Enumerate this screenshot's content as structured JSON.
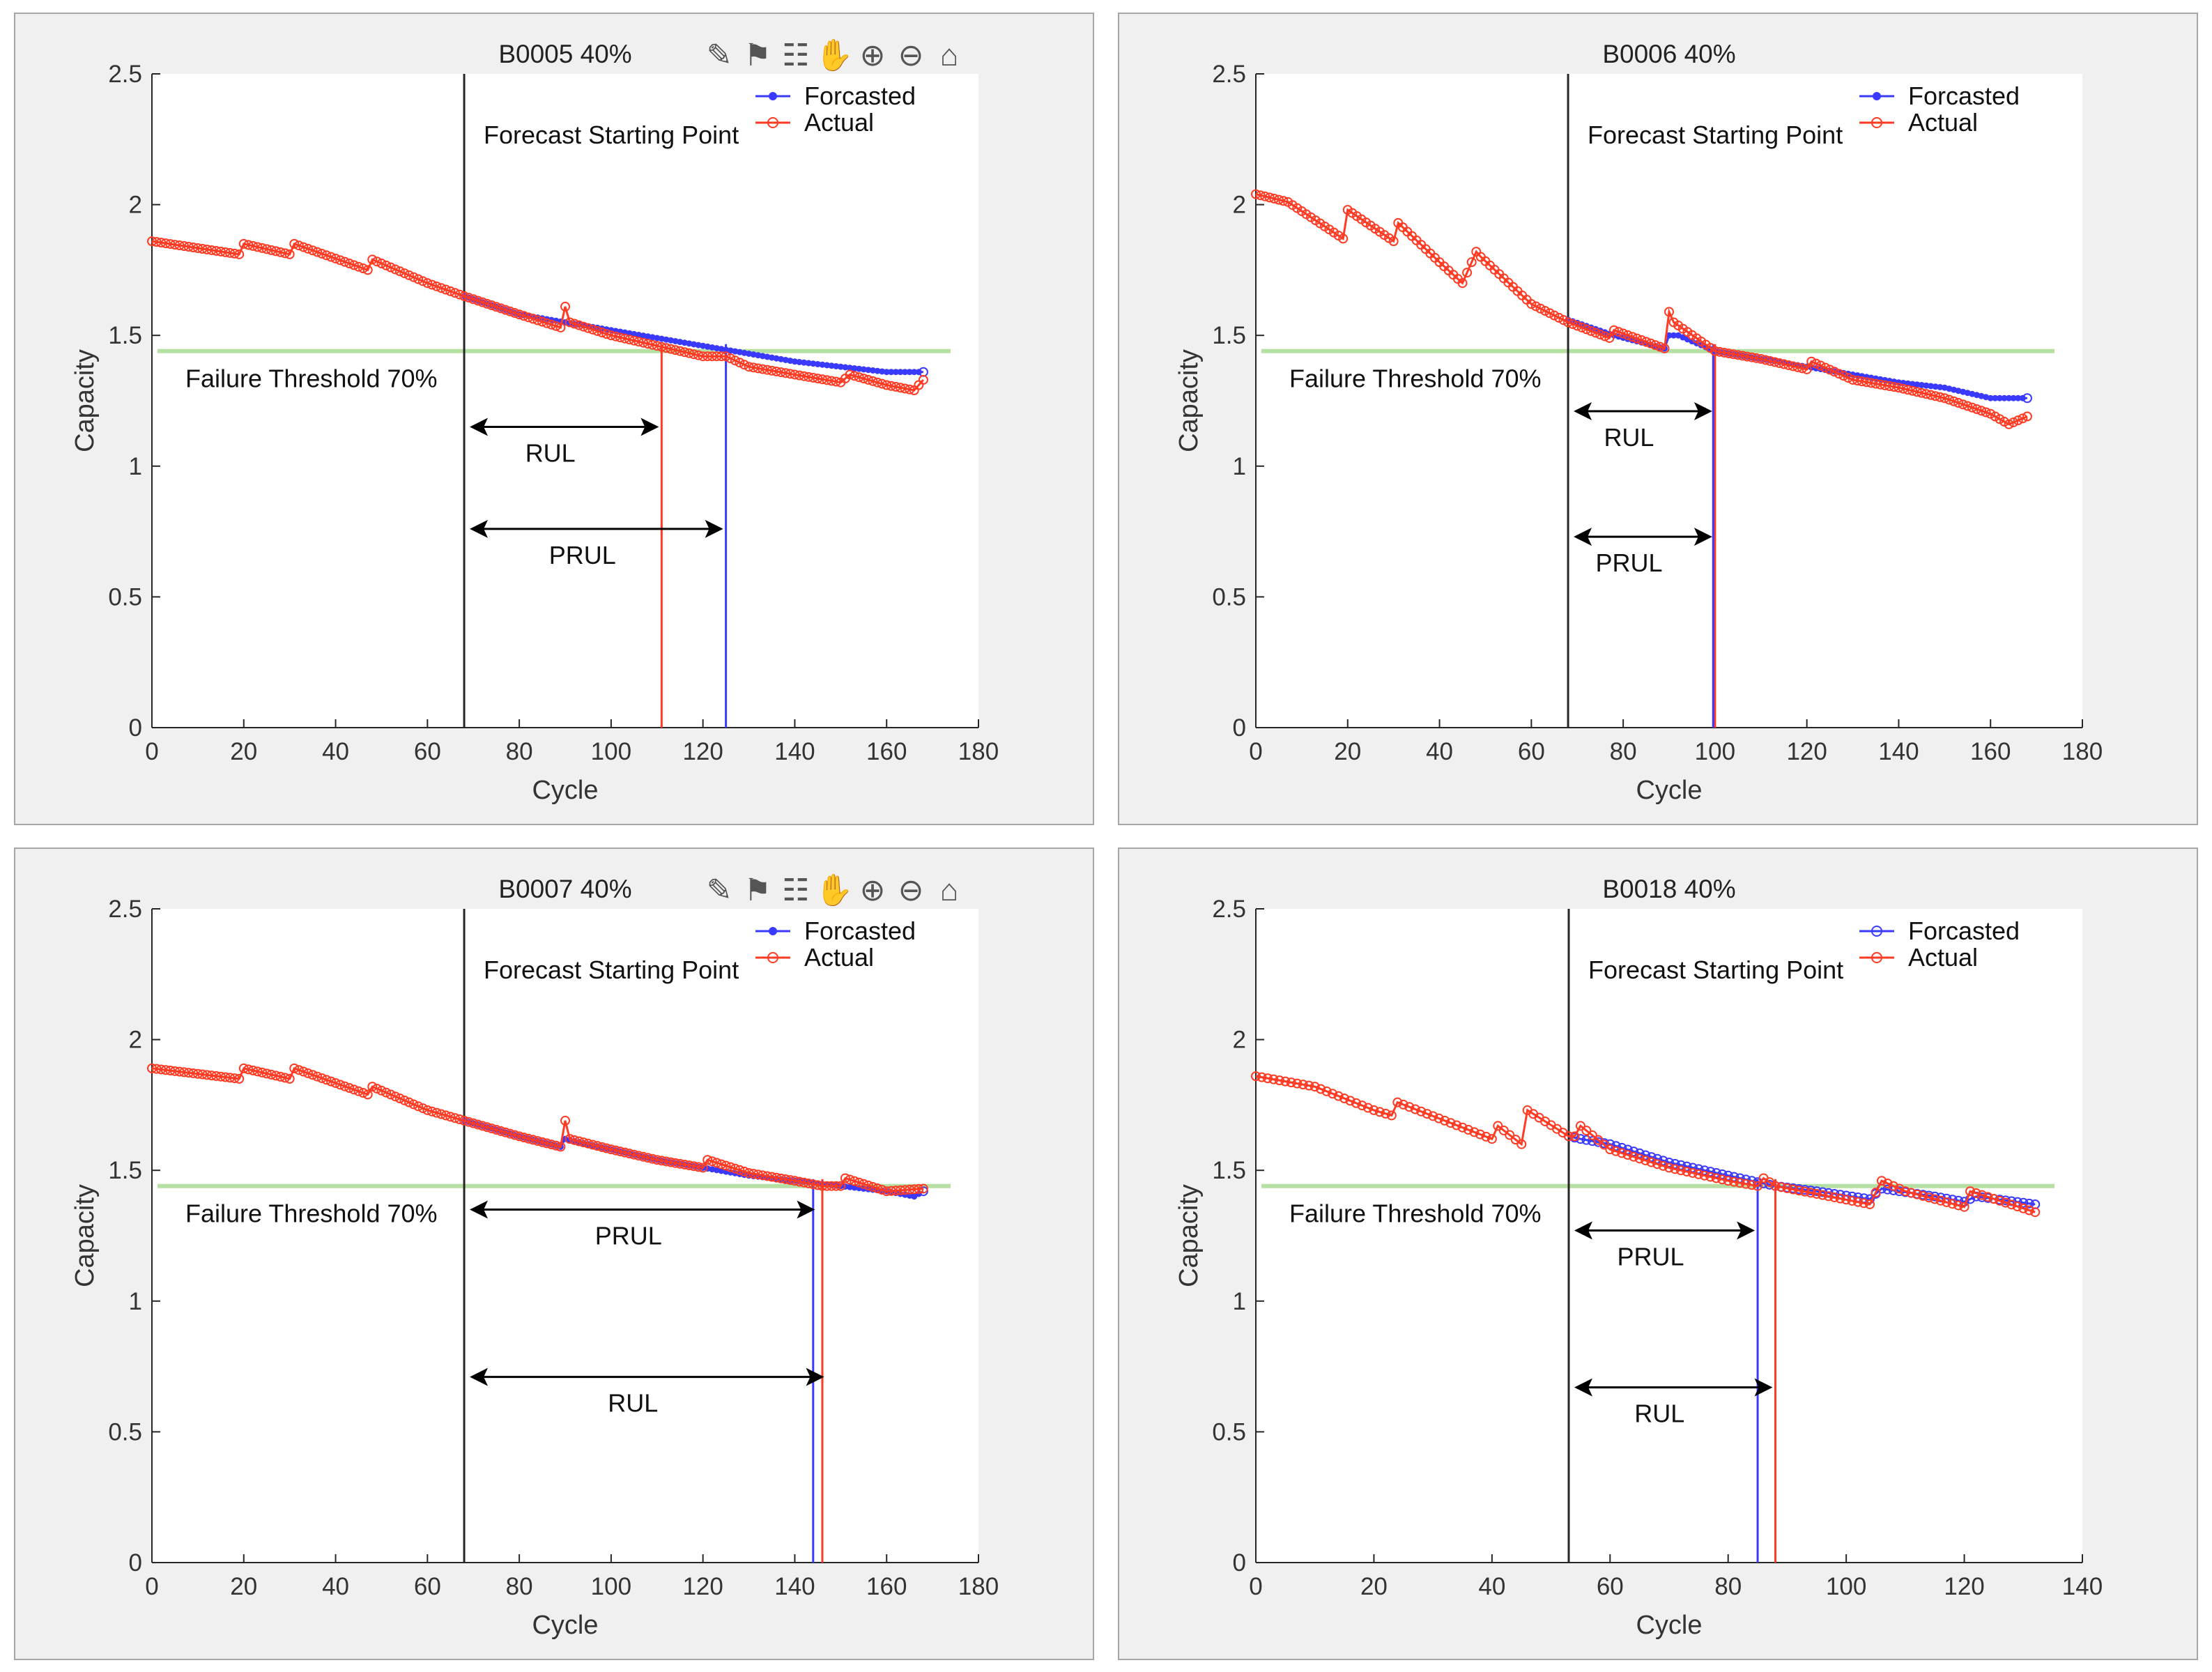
{
  "chart_data": [
    {
      "type": "line",
      "title": "B0005 40%",
      "xlabel": "Cycle",
      "ylabel": "Capacity",
      "xlim": [
        0,
        180
      ],
      "ylim": [
        0,
        2.5
      ],
      "xticks": [
        0,
        20,
        40,
        60,
        80,
        100,
        120,
        140,
        160,
        180
      ],
      "yticks": [
        0,
        0.5,
        1,
        1.5,
        2,
        2.5
      ],
      "legend": {
        "position": "top-right",
        "entries": [
          "Forcasted",
          "Actual"
        ]
      },
      "series": [
        {
          "name": "Forcasted",
          "color": "#3a3aff",
          "marker": "dot",
          "x": [
            68,
            80,
            90,
            100,
            110,
            120,
            130,
            140,
            150,
            160,
            168
          ],
          "y": [
            1.65,
            1.58,
            1.55,
            1.52,
            1.49,
            1.46,
            1.43,
            1.4,
            1.38,
            1.36,
            1.36
          ]
        },
        {
          "name": "Actual",
          "color": "#ff3b24",
          "marker": "circle",
          "x": [
            0,
            19,
            20,
            30,
            31,
            47,
            48,
            60,
            68,
            80,
            89,
            90,
            91,
            100,
            110,
            120,
            125,
            130,
            140,
            150,
            152,
            160,
            166,
            168
          ],
          "y": [
            1.86,
            1.81,
            1.85,
            1.81,
            1.85,
            1.75,
            1.79,
            1.7,
            1.65,
            1.58,
            1.53,
            1.61,
            1.55,
            1.5,
            1.46,
            1.42,
            1.42,
            1.38,
            1.35,
            1.32,
            1.35,
            1.31,
            1.29,
            1.33
          ]
        }
      ],
      "threshold": {
        "y": 1.44,
        "label": "Failure Threshold 70%",
        "color": "#b6dfa3"
      },
      "forecast_start": {
        "x": 68,
        "label": "Forecast Starting Point"
      },
      "vlines": [
        {
          "x": 111,
          "color": "#ff3b24"
        },
        {
          "x": 125,
          "color": "#3a3aff"
        }
      ],
      "arrows": [
        {
          "label": "RUL",
          "x0": 68,
          "x1": 111,
          "y": 1.15
        },
        {
          "label": "PRUL",
          "x0": 68,
          "x1": 125,
          "y": 0.76
        }
      ],
      "toolbar": true
    },
    {
      "type": "line",
      "title": "B0006 40%",
      "xlabel": "Cycle",
      "ylabel": "Capacity",
      "xlim": [
        0,
        180
      ],
      "ylim": [
        0,
        2.5
      ],
      "xticks": [
        0,
        20,
        40,
        60,
        80,
        100,
        120,
        140,
        160,
        180
      ],
      "yticks": [
        0,
        0.5,
        1,
        1.5,
        2,
        2.5
      ],
      "legend": {
        "position": "top-right",
        "entries": [
          "Forcasted",
          "Actual"
        ]
      },
      "series": [
        {
          "name": "Forcasted",
          "color": "#3a3aff",
          "marker": "dot",
          "x": [
            68,
            78,
            89,
            90,
            92,
            100,
            110,
            120,
            130,
            140,
            150,
            160,
            168
          ],
          "y": [
            1.56,
            1.5,
            1.45,
            1.5,
            1.5,
            1.44,
            1.41,
            1.38,
            1.35,
            1.32,
            1.3,
            1.26,
            1.26
          ]
        },
        {
          "name": "Actual",
          "color": "#ff3b24",
          "marker": "circle",
          "x": [
            0,
            7,
            19,
            20,
            30,
            31,
            40,
            45,
            48,
            49,
            60,
            68,
            77,
            78,
            89,
            90,
            91,
            100,
            110,
            120,
            121,
            130,
            140,
            150,
            160,
            164,
            168
          ],
          "y": [
            2.04,
            2.01,
            1.87,
            1.98,
            1.86,
            1.93,
            1.78,
            1.7,
            1.82,
            1.8,
            1.62,
            1.55,
            1.49,
            1.52,
            1.45,
            1.59,
            1.55,
            1.44,
            1.41,
            1.37,
            1.4,
            1.33,
            1.3,
            1.26,
            1.2,
            1.16,
            1.19
          ]
        }
      ],
      "threshold": {
        "y": 1.44,
        "label": "Failure Threshold 70%",
        "color": "#b6dfa3"
      },
      "forecast_start": {
        "x": 68,
        "label": "Forecast Starting Point"
      },
      "vlines": [
        {
          "x": 100,
          "color": "#ff3b24"
        },
        {
          "x": 99.6,
          "color": "#3a3aff"
        }
      ],
      "arrows": [
        {
          "label": "RUL",
          "x0": 68,
          "x1": 100,
          "y": 1.21
        },
        {
          "label": "PRUL",
          "x0": 68,
          "x1": 100,
          "y": 0.73
        }
      ],
      "toolbar": false
    },
    {
      "type": "line",
      "title": "B0007 40%",
      "xlabel": "Cycle",
      "ylabel": "Capacity",
      "xlim": [
        0,
        180
      ],
      "ylim": [
        0,
        2.5
      ],
      "xticks": [
        0,
        20,
        40,
        60,
        80,
        100,
        120,
        140,
        160,
        180
      ],
      "yticks": [
        0,
        0.5,
        1,
        1.5,
        2,
        2.5
      ],
      "legend": {
        "position": "top-right",
        "entries": [
          "Forcasted",
          "Actual"
        ]
      },
      "series": [
        {
          "name": "Forcasted",
          "color": "#3a3aff",
          "marker": "dot",
          "x": [
            68,
            80,
            89,
            90,
            100,
            110,
            120,
            130,
            140,
            150,
            160,
            166,
            168
          ],
          "y": [
            1.69,
            1.63,
            1.59,
            1.62,
            1.58,
            1.54,
            1.51,
            1.48,
            1.46,
            1.44,
            1.42,
            1.4,
            1.42
          ]
        },
        {
          "name": "Actual",
          "color": "#ff3b24",
          "marker": "circle",
          "x": [
            0,
            19,
            20,
            30,
            31,
            47,
            48,
            60,
            68,
            80,
            89,
            90,
            91,
            100,
            110,
            120,
            121,
            130,
            140,
            146,
            150,
            151,
            160,
            168
          ],
          "y": [
            1.89,
            1.85,
            1.89,
            1.85,
            1.89,
            1.79,
            1.82,
            1.73,
            1.69,
            1.63,
            1.59,
            1.69,
            1.62,
            1.58,
            1.54,
            1.51,
            1.54,
            1.49,
            1.46,
            1.44,
            1.44,
            1.47,
            1.42,
            1.43
          ]
        }
      ],
      "threshold": {
        "y": 1.44,
        "label": "Failure Threshold 70%",
        "color": "#b6dfa3"
      },
      "forecast_start": {
        "x": 68,
        "label": "Forecast Starting Point"
      },
      "vlines": [
        {
          "x": 144,
          "color": "#3a3aff"
        },
        {
          "x": 146,
          "color": "#ff3b24"
        }
      ],
      "arrows": [
        {
          "label": "PRUL",
          "x0": 68,
          "x1": 145,
          "y": 1.35
        },
        {
          "label": "RUL",
          "x0": 68,
          "x1": 147,
          "y": 0.71
        }
      ],
      "toolbar": true
    },
    {
      "type": "line",
      "title": "B0018 40%",
      "xlabel": "Cycle",
      "ylabel": "Capacity",
      "xlim": [
        0,
        140
      ],
      "ylim": [
        0,
        2.5
      ],
      "xticks": [
        0,
        20,
        40,
        60,
        80,
        100,
        120,
        140
      ],
      "yticks": [
        0,
        0.5,
        1,
        1.5,
        2,
        2.5
      ],
      "legend": {
        "position": "top-right",
        "entries": [
          "Forcasted",
          "Actual"
        ]
      },
      "series": [
        {
          "name": "Forcasted",
          "color": "#3a3aff",
          "marker": "circle",
          "x": [
            53,
            55,
            60,
            70,
            80,
            88,
            95,
            104,
            106,
            115,
            120,
            122,
            132
          ],
          "y": [
            1.63,
            1.62,
            1.6,
            1.53,
            1.48,
            1.44,
            1.42,
            1.39,
            1.43,
            1.4,
            1.38,
            1.4,
            1.37
          ]
        },
        {
          "name": "Actual",
          "color": "#ff3b24",
          "marker": "circle",
          "x": [
            0,
            10,
            20,
            23,
            24,
            40,
            41,
            45,
            46,
            53,
            54,
            55,
            60,
            70,
            80,
            85,
            86,
            88,
            95,
            104,
            106,
            110,
            120,
            121,
            132
          ],
          "y": [
            1.86,
            1.82,
            1.73,
            1.71,
            1.76,
            1.62,
            1.67,
            1.6,
            1.73,
            1.63,
            1.63,
            1.67,
            1.58,
            1.51,
            1.46,
            1.44,
            1.47,
            1.44,
            1.41,
            1.37,
            1.46,
            1.42,
            1.36,
            1.42,
            1.34
          ]
        }
      ],
      "threshold": {
        "y": 1.44,
        "label": "Failure Threshold 70%",
        "color": "#b6dfa3"
      },
      "forecast_start": {
        "x": 53,
        "label": "Forecast Starting Point"
      },
      "vlines": [
        {
          "x": 85,
          "color": "#3a3aff"
        },
        {
          "x": 88,
          "color": "#ff3b24"
        }
      ],
      "arrows": [
        {
          "label": "PRUL",
          "x0": 53,
          "x1": 85,
          "y": 1.27
        },
        {
          "label": "RUL",
          "x0": 53,
          "x1": 88,
          "y": 0.67
        }
      ],
      "toolbar": false
    }
  ]
}
